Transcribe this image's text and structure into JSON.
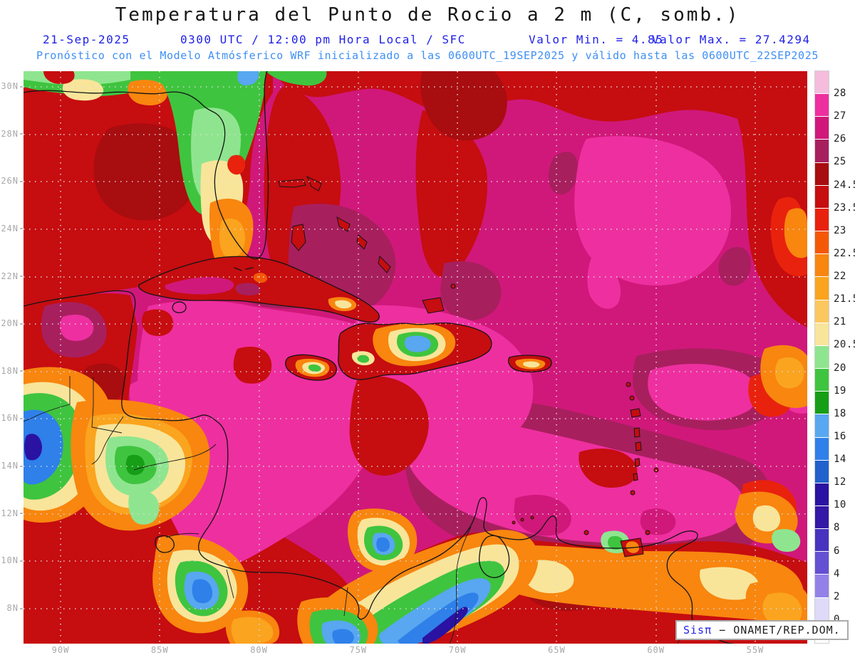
{
  "title": "Temperatura del Punto de Rocio a 2 m (C, somb.)",
  "subtitle": {
    "date": "21-Sep-2025",
    "time": "0300 UTC / 12:00 pm Hora Local / SFC",
    "valor_min": "Valor Min. = 4.85",
    "valor_max": "Valor Max. = 27.4294",
    "forecast": "Pronóstico con el Modelo Atmósferico WRF inicializado a las 0600UTC_19SEP2025 y válido hasta las  0600UTC_22SEP2025"
  },
  "attribution": {
    "brand": "Sisπ",
    "org": "− ONAMET/REP.DOM."
  },
  "axes": {
    "lat_labels": [
      "30N",
      "28N",
      "26N",
      "24N",
      "22N",
      "20N",
      "18N",
      "16N",
      "14N",
      "12N",
      "10N",
      "8N"
    ],
    "lon_labels": [
      "90W",
      "85W",
      "80W",
      "75W",
      "70W",
      "65W",
      "60W",
      "55W"
    ]
  },
  "colors": {
    "title_text": "#161616",
    "subtitle_blue": "#2121E8",
    "forecast_blue": "#3F8FF2",
    "axis_gray": "#A8A8A8",
    "sea_base": "#D0187A",
    "sea_pink": "#EE2FA0",
    "sea_dark_magenta": "#A81F5E",
    "dark_red": "#C60D10"
  },
  "colorbar": {
    "segments": [
      {
        "color": "#F5BCDD",
        "label": "28"
      },
      {
        "color": "#EE2FA0",
        "label": "27"
      },
      {
        "color": "#D0187A",
        "label": "26"
      },
      {
        "color": "#A81F5E",
        "label": "25"
      },
      {
        "color": "#A80D10",
        "label": "24.5"
      },
      {
        "color": "#C60D10",
        "label": "23.5"
      },
      {
        "color": "#E8220D",
        "label": "23"
      },
      {
        "color": "#F45806",
        "label": "22.5"
      },
      {
        "color": "#F8860F",
        "label": "22"
      },
      {
        "color": "#FAA41F",
        "label": "21.5"
      },
      {
        "color": "#FBC75F",
        "label": "21"
      },
      {
        "color": "#F8E59A",
        "label": "20.5"
      },
      {
        "color": "#8FE58F",
        "label": "20"
      },
      {
        "color": "#3FC43F",
        "label": "19"
      },
      {
        "color": "#179E17",
        "label": "18"
      },
      {
        "color": "#58A7F0",
        "label": "16"
      },
      {
        "color": "#2F80E9",
        "label": "14"
      },
      {
        "color": "#2061CB",
        "label": "12"
      },
      {
        "color": "#2A12A2",
        "label": "10"
      },
      {
        "color": "#3418A6",
        "label": "8"
      },
      {
        "color": "#4733BE",
        "label": "6"
      },
      {
        "color": "#6450D2",
        "label": "4"
      },
      {
        "color": "#9381E8",
        "label": "2"
      },
      {
        "color": "#DEDAF8",
        "label": "0"
      },
      {
        "color": "#FFFFFF",
        "label": null
      }
    ]
  },
  "chart_data": {
    "type": "filled_contour_map",
    "title": "Temperatura del Punto de Rocio a 2 m (C, somb.)",
    "variable": "Temperatura del punto de rocio a 2 m",
    "units": "C",
    "valid_time": "21-Sep-2025 0300 UTC / 12:00 pm Hora Local / SFC",
    "model": "WRF inicializado 0600UTC_19SEP2025, válido hasta 0600UTC_22SEP2025",
    "value_min": 4.85,
    "value_max": 27.4294,
    "region": {
      "lat_range": [
        "8N",
        "30N"
      ],
      "lon_range": [
        "90W",
        "55W"
      ]
    },
    "contour_levels": [
      0,
      2,
      4,
      6,
      8,
      10,
      12,
      14,
      16,
      18,
      19,
      20,
      20.5,
      21,
      21.5,
      22,
      22.5,
      23,
      23.5,
      24.5,
      25,
      26,
      27,
      28
    ],
    "legend_position": "right",
    "grid": "dotted 2deg lat x 5deg lon"
  }
}
